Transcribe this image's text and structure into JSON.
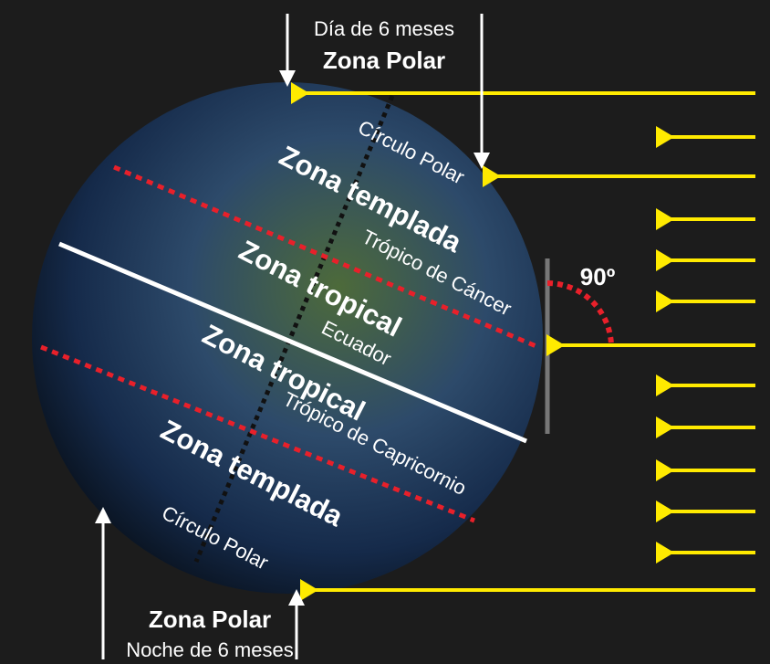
{
  "header": {
    "note": "Día de 6 meses",
    "zone": "Zona Polar"
  },
  "footer": {
    "zone": "Zona Polar",
    "note": "Noche de 6 meses"
  },
  "angle": "90º",
  "zones": [
    "Zona templada",
    "Zona tropical",
    "Zona tropical",
    "Zona templada"
  ],
  "lines": [
    "Círculo Polar",
    "Trópico de Cáncer",
    "Ecuador",
    "Trópico de Capricornio",
    "Círculo Polar"
  ]
}
